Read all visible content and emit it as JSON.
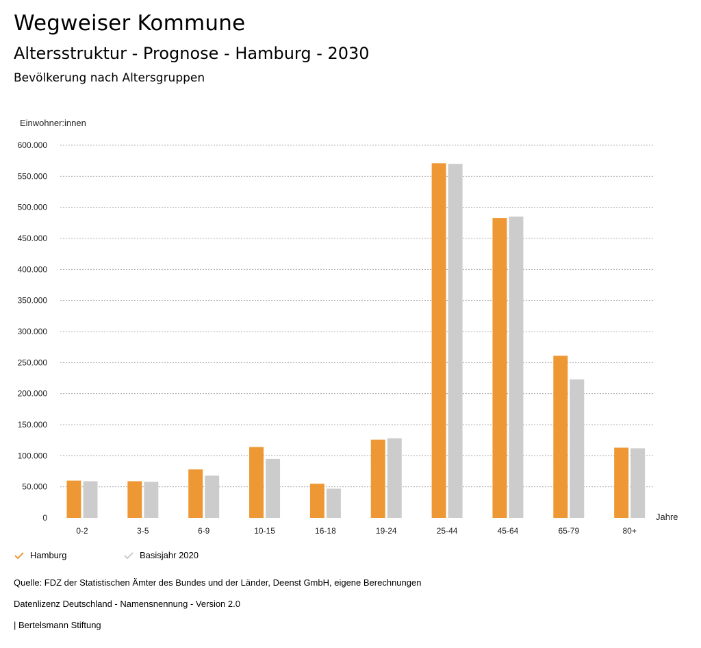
{
  "header": {
    "title": "Wegweiser Kommune",
    "subtitle": "Altersstruktur - Prognose - Hamburg - 2030",
    "chart_heading": "Bevölkerung nach Altersgruppen"
  },
  "colors": {
    "hamburg": "#ee9835",
    "basis": "#cccccc",
    "grid": "#999999"
  },
  "chart_data": {
    "type": "bar",
    "title": "Bevölkerung nach Altersgruppen",
    "ylabel": "Einwohner:innen",
    "xlabel": "Jahre",
    "ylim": [
      0,
      600000
    ],
    "yticks": [
      0,
      50000,
      100000,
      150000,
      200000,
      250000,
      300000,
      350000,
      400000,
      450000,
      500000,
      550000,
      600000
    ],
    "ytick_labels": [
      "0",
      "50.000",
      "100.000",
      "150.000",
      "200.000",
      "250.000",
      "300.000",
      "350.000",
      "400.000",
      "450.000",
      "500.000",
      "550.000",
      "600.000"
    ],
    "grid": true,
    "categories": [
      "0-2",
      "3-5",
      "6-9",
      "10-15",
      "16-18",
      "19-24",
      "25-44",
      "45-64",
      "65-79",
      "80+"
    ],
    "series": [
      {
        "name": "Hamburg",
        "color": "#ee9835",
        "values": [
          60000,
          59000,
          78000,
          114000,
          55000,
          126000,
          571000,
          483000,
          261000,
          113000
        ]
      },
      {
        "name": "Basisjahr 2020",
        "color": "#cccccc",
        "values": [
          59000,
          58000,
          68000,
          95000,
          47000,
          128000,
          570000,
          485000,
          223000,
          112000
        ]
      }
    ]
  },
  "legend": {
    "items": [
      {
        "label": "Hamburg"
      },
      {
        "label": "Basisjahr 2020"
      }
    ]
  },
  "footer": {
    "source": "Quelle: FDZ der Statistischen Ämter des Bundes und der Länder, Deenst GmbH, eigene Berechnungen",
    "license": "Datenlizenz Deutschland - Namensnennung - Version 2.0",
    "credit": "| Bertelsmann Stiftung"
  }
}
